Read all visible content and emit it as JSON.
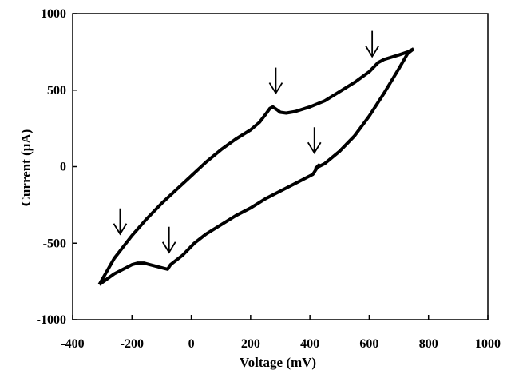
{
  "chart_data": {
    "type": "line",
    "title": "",
    "xlabel": "Voltage (mV)",
    "ylabel": "Current (μA)",
    "xlim": [
      -400,
      1000
    ],
    "ylim": [
      -1000,
      1000
    ],
    "xticks": [
      -400,
      -200,
      0,
      200,
      400,
      600,
      800,
      1000
    ],
    "yticks": [
      -1000,
      -500,
      0,
      500,
      1000
    ],
    "grid": false,
    "legend": "none",
    "series": [
      {
        "x": [
          -310,
          -260,
          -200,
          -150,
          -100,
          -50,
          0,
          50,
          100,
          150,
          200,
          230,
          250,
          265,
          275,
          290,
          300,
          320,
          350,
          400,
          450,
          500,
          550,
          600,
          630,
          650,
          700,
          730,
          750
        ],
        "y": [
          -770,
          -600,
          -450,
          -340,
          -240,
          -150,
          -60,
          30,
          110,
          180,
          240,
          290,
          340,
          380,
          390,
          370,
          355,
          350,
          360,
          390,
          430,
          490,
          550,
          620,
          680,
          700,
          730,
          750,
          770
        ]
      },
      {
        "x": [
          750,
          730,
          700,
          650,
          600,
          550,
          500,
          450,
          420,
          430,
          410,
          350,
          300,
          250,
          200,
          150,
          100,
          50,
          10,
          -30,
          -70,
          -80,
          -100,
          -140,
          -160,
          -180,
          -200,
          -260,
          -310
        ],
        "y": [
          770,
          740,
          640,
          480,
          330,
          200,
          100,
          20,
          -10,
          10,
          -50,
          -110,
          -160,
          -210,
          -270,
          -320,
          -380,
          -440,
          -500,
          -580,
          -640,
          -670,
          -660,
          -640,
          -630,
          -630,
          -640,
          -700,
          -770
        ]
      }
    ],
    "annotations": [
      {
        "type": "arrow",
        "x": -240,
        "y": -440
      },
      {
        "type": "arrow",
        "x": 285,
        "y": 480
      },
      {
        "type": "arrow",
        "x": 610,
        "y": 720
      },
      {
        "type": "arrow",
        "x": 415,
        "y": 90
      },
      {
        "type": "arrow",
        "x": -75,
        "y": -560
      }
    ]
  },
  "colors": {
    "line": "#000000",
    "axis": "#000000",
    "background": "#ffffff"
  }
}
